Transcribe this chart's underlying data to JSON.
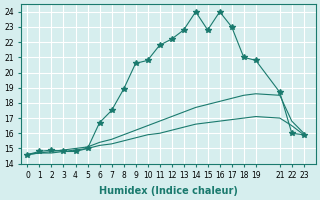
{
  "xlabel": "Humidex (Indice chaleur)",
  "background_color": "#d6eeee",
  "grid_color": "#ffffff",
  "line_color": "#1a7a6e",
  "series": [
    {
      "x": [
        0,
        1,
        2,
        3,
        4,
        5,
        6,
        7,
        8,
        9,
        10,
        11,
        12,
        13,
        14,
        15,
        16,
        17,
        18,
        19,
        21,
        22,
        23
      ],
      "y": [
        14.6,
        14.8,
        14.9,
        14.8,
        14.8,
        15.0,
        16.7,
        17.5,
        18.9,
        20.6,
        20.8,
        21.8,
        22.2,
        22.8,
        24.0,
        22.8,
        24.0,
        23.0,
        21.0,
        20.8,
        18.7,
        16.0,
        15.9
      ],
      "marker": "*"
    },
    {
      "x": [
        0,
        1,
        2,
        3,
        4,
        5,
        6,
        7,
        8,
        9,
        10,
        11,
        12,
        13,
        14,
        15,
        16,
        17,
        18,
        19,
        21,
        22,
        23
      ],
      "y": [
        14.6,
        14.7,
        14.8,
        14.9,
        15.0,
        15.1,
        15.4,
        15.6,
        15.9,
        16.2,
        16.5,
        16.8,
        17.1,
        17.4,
        17.7,
        17.9,
        18.1,
        18.3,
        18.5,
        18.6,
        18.5,
        16.8,
        16.0
      ],
      "marker": null
    },
    {
      "x": [
        0,
        1,
        2,
        3,
        4,
        5,
        6,
        7,
        8,
        9,
        10,
        11,
        12,
        13,
        14,
        15,
        16,
        17,
        18,
        19,
        21,
        22,
        23
      ],
      "y": [
        14.6,
        14.7,
        14.7,
        14.8,
        14.9,
        15.0,
        15.2,
        15.3,
        15.5,
        15.7,
        15.9,
        16.0,
        16.2,
        16.4,
        16.6,
        16.7,
        16.8,
        16.9,
        17.0,
        17.1,
        17.0,
        16.5,
        15.9
      ],
      "marker": null
    }
  ],
  "xlim": [
    -0.5,
    24
  ],
  "ylim": [
    14,
    24.5
  ],
  "xticks": [
    0,
    1,
    2,
    3,
    4,
    5,
    6,
    7,
    8,
    9,
    10,
    11,
    12,
    13,
    14,
    15,
    16,
    17,
    18,
    19,
    21,
    22,
    23
  ],
  "xtick_labels": [
    "0",
    "1",
    "2",
    "3",
    "4",
    "5",
    "6",
    "7",
    "8",
    "9",
    "10",
    "11",
    "12",
    "13",
    "14",
    "15",
    "16",
    "17",
    "18",
    "19",
    "21",
    "22",
    "23"
  ],
  "yticks": [
    14,
    15,
    16,
    17,
    18,
    19,
    20,
    21,
    22,
    23,
    24
  ],
  "tick_fontsize": 5.5,
  "xlabel_fontsize": 7,
  "title_fontsize": 7
}
